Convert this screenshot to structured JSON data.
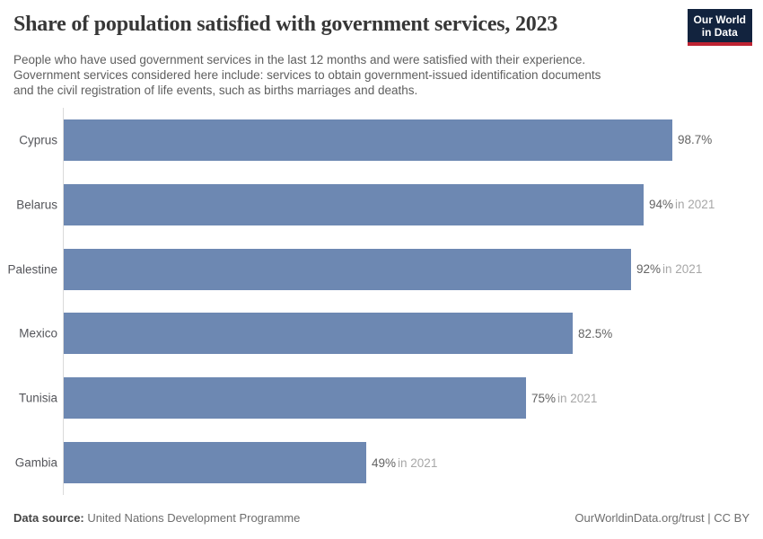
{
  "header": {
    "title": "Share of population satisfied with government services, 2023",
    "logo_line1": "Our World",
    "logo_line2": "in Data"
  },
  "subtitle_lines": [
    "People who have used government services in the last 12 months and were satisfied with their experience.",
    "Government services considered here include: services to obtain government-issued identification documents",
    "and the civil registration of life events, such as births marriages and deaths."
  ],
  "chart_data": {
    "type": "bar",
    "orientation": "horizontal",
    "title": "Share of population satisfied with government services, 2023",
    "categories": [
      "Cyprus",
      "Belarus",
      "Palestine",
      "Mexico",
      "Tunisia",
      "Gambia"
    ],
    "values": [
      98.7,
      94,
      92,
      82.5,
      75,
      49
    ],
    "value_labels": [
      "98.7%",
      "94%",
      "92%",
      "82.5%",
      "75%",
      "49%"
    ],
    "year_notes": [
      "",
      "in 2021",
      "in 2021",
      "",
      "in 2021",
      "in 2021"
    ],
    "unit": "%",
    "xlim": [
      0,
      100
    ],
    "grid": false,
    "legend": "none",
    "bar_color": "#6d88b2"
  },
  "footer": {
    "source_label": "Data source:",
    "source_value": " United Nations Development Programme",
    "credit": "OurWorldinData.org/trust | CC BY"
  },
  "colors": {
    "bar": "#6d88b2",
    "logo_navy": "#12233e",
    "logo_red": "#be2332",
    "axis_line": "#dadada"
  }
}
